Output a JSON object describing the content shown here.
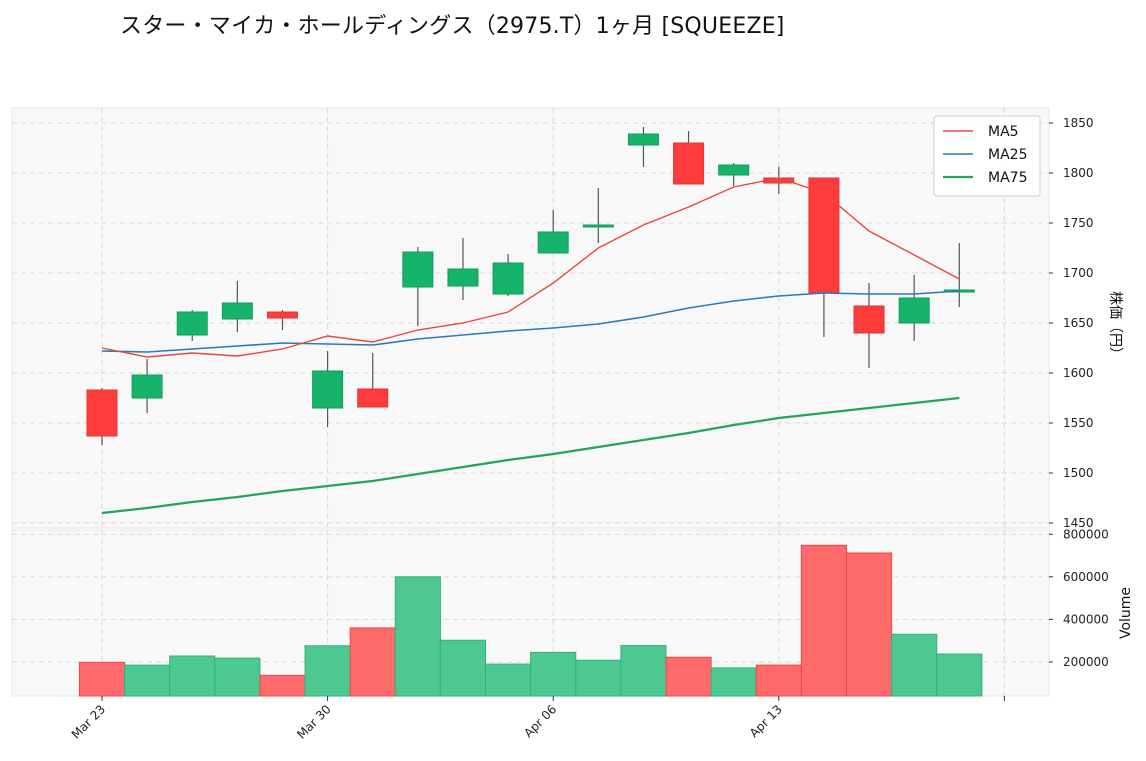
{
  "title": "スター・マイカ・ホールディングス（2975.T）1ヶ月 [SQUEEZE]",
  "colors": {
    "up": "#16b46b",
    "down": "#ff3b3b",
    "ma5": "#e8493c",
    "ma25": "#2a7ab8",
    "ma75": "#22a55b",
    "grid": "#d8d8d8",
    "panel_bg": "#f8f8f8"
  },
  "chart_data": {
    "type": "candlestick",
    "dates": [
      "Mar 23",
      "Mar 24",
      "Mar 25",
      "Mar 26",
      "Mar 27",
      "Mar 30",
      "Mar 31",
      "Apr 01",
      "Apr 02",
      "Apr 03",
      "Apr 06",
      "Apr 07",
      "Apr 08",
      "Apr 09",
      "Apr 10",
      "Apr 13",
      "Apr 14",
      "Apr 15",
      "Apr 16",
      "Apr 17"
    ],
    "x_tick_labels": [
      "Mar 23",
      "Mar 30",
      "Apr 06",
      "Apr 13"
    ],
    "ohlc": [
      {
        "o": 1583,
        "h": 1585,
        "l": 1528,
        "c": 1537
      },
      {
        "o": 1575,
        "h": 1614,
        "l": 1560,
        "c": 1598
      },
      {
        "o": 1638,
        "h": 1663,
        "l": 1632,
        "c": 1661
      },
      {
        "o": 1654,
        "h": 1692,
        "l": 1641,
        "c": 1670
      },
      {
        "o": 1661,
        "h": 1663,
        "l": 1643,
        "c": 1655
      },
      {
        "o": 1565,
        "h": 1622,
        "l": 1546,
        "c": 1602
      },
      {
        "o": 1584,
        "h": 1620,
        "l": 1566,
        "c": 1566
      },
      {
        "o": 1686,
        "h": 1726,
        "l": 1647,
        "c": 1721
      },
      {
        "o": 1687,
        "h": 1735,
        "l": 1673,
        "c": 1704
      },
      {
        "o": 1679,
        "h": 1719,
        "l": 1677,
        "c": 1710
      },
      {
        "o": 1720,
        "h": 1763,
        "l": 1720,
        "c": 1741
      },
      {
        "o": 1748,
        "h": 1785,
        "l": 1730,
        "c": 1748
      },
      {
        "o": 1828,
        "h": 1846,
        "l": 1806,
        "c": 1839
      },
      {
        "o": 1830,
        "h": 1842,
        "l": 1789,
        "c": 1789
      },
      {
        "o": 1798,
        "h": 1810,
        "l": 1787,
        "c": 1808
      },
      {
        "o": 1795,
        "h": 1806,
        "l": 1779,
        "c": 1790
      },
      {
        "o": 1795,
        "h": 1795,
        "l": 1636,
        "c": 1680
      },
      {
        "o": 1667,
        "h": 1690,
        "l": 1605,
        "c": 1640
      },
      {
        "o": 1650,
        "h": 1698,
        "l": 1632,
        "c": 1675
      },
      {
        "o": 1683,
        "h": 1730,
        "l": 1666,
        "c": 1683
      }
    ],
    "volume": [
      198000,
      185000,
      228000,
      218000,
      137000,
      276000,
      360000,
      600000,
      302000,
      190000,
      245000,
      208000,
      277000,
      222000,
      172000,
      185000,
      748000,
      712000,
      330000,
      237000
    ],
    "ma5": [
      1625,
      1616,
      1620,
      1617,
      1624,
      1637,
      1631,
      1643,
      1650,
      1661,
      1690,
      1725,
      1748,
      1766,
      1786,
      1795,
      1780,
      1742,
      1718,
      1694
    ],
    "ma25": [
      1622,
      1621,
      1624,
      1627,
      1630,
      1629,
      1628,
      1634,
      1638,
      1642,
      1645,
      1649,
      1656,
      1665,
      1672,
      1677,
      1680,
      1679,
      1679,
      1682
    ],
    "ma75": [
      1460,
      1465,
      1471,
      1476,
      1482,
      1487,
      1492,
      1499,
      1506,
      1513,
      1519,
      1526,
      1533,
      1540,
      1548,
      1555,
      1560,
      1565,
      1570,
      1575
    ],
    "price_axis": {
      "label": "株価（円）",
      "ticks": [
        1450,
        1500,
        1550,
        1600,
        1650,
        1700,
        1750,
        1800,
        1850
      ],
      "range": [
        1445,
        1865
      ]
    },
    "volume_axis": {
      "label": "Volume",
      "ticks": [
        200000,
        400000,
        600000,
        800000
      ],
      "tick_labels": [
        "200000",
        "400000",
        "600000",
        "800000"
      ],
      "range": [
        40000,
        820000
      ]
    },
    "legend": {
      "position": "top-right",
      "entries": [
        "MA5",
        "MA25",
        "MA75"
      ]
    },
    "grid": true
  }
}
